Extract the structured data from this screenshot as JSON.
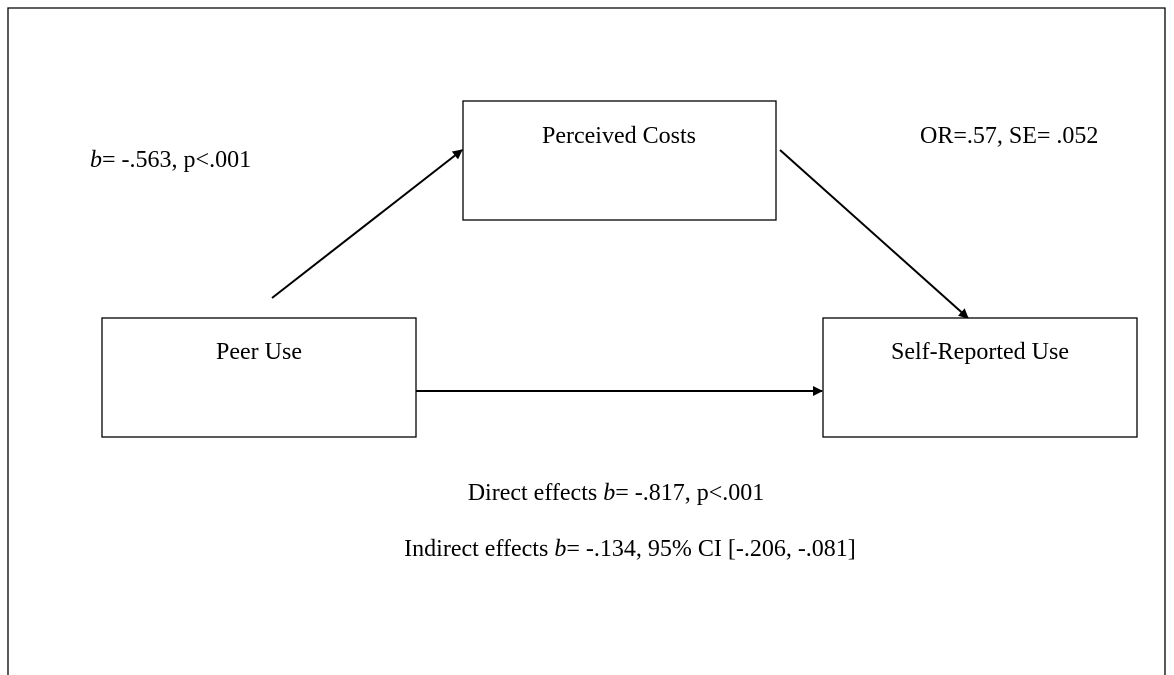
{
  "nodes": [
    {
      "label": "Perceived Costs"
    },
    {
      "label": "Peer Use"
    },
    {
      "label": "Self-Reported Use"
    }
  ],
  "annotations": [
    {
      "runs": [
        {
          "text": "b",
          "italic": true
        },
        {
          "text": "= -.563, p<.001"
        }
      ]
    },
    {
      "runs": [
        {
          "text": "OR=.57, SE= .052"
        }
      ]
    },
    {
      "runs": [
        {
          "text": "Direct effects "
        },
        {
          "text": "b",
          "italic": true
        },
        {
          "text": "= -.817, p<.001"
        }
      ]
    },
    {
      "runs": [
        {
          "text": "Indirect effects "
        },
        {
          "text": "b",
          "italic": true
        },
        {
          "text": "= -.134, 95% CI [-.206, -.081]"
        }
      ]
    }
  ]
}
